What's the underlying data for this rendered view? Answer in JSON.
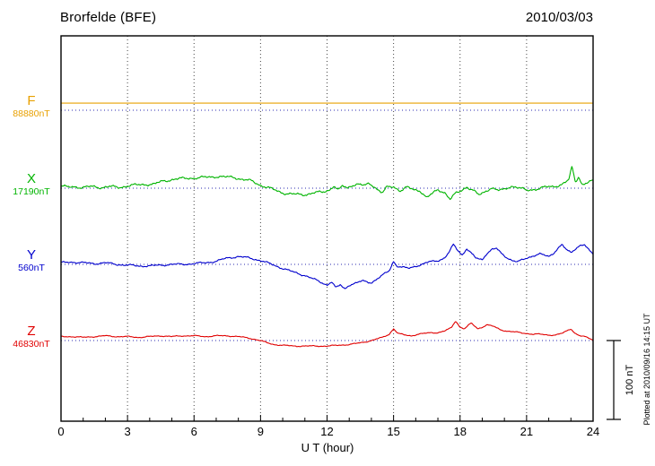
{
  "header": {
    "station": "Brorfelde (BFE)",
    "date": "2010/03/03"
  },
  "axis": {
    "x_label": "U T (hour)",
    "x_ticks": [
      0,
      3,
      6,
      9,
      12,
      15,
      18,
      21,
      24
    ],
    "x_range": [
      0,
      24
    ]
  },
  "scale_bar": {
    "label": "100 nT",
    "nT": 100
  },
  "plot_note": "Plotted at 2010/09/16 14:15 UT",
  "chart_data": {
    "type": "line",
    "title": "Brorfelde (BFE) magnetogram",
    "date": "2010/03/03",
    "xlabel": "U T (hour)",
    "x_range": [
      0,
      24
    ],
    "x_ticks": [
      0,
      3,
      6,
      9,
      12,
      15,
      18,
      21,
      24
    ],
    "grid": "dotted-vertical-at-3h",
    "scale_division_nT": 100,
    "units": "nT",
    "points_format": "[hour, delta_nT_from_baseline]",
    "series": [
      {
        "name": "F",
        "baseline_label": "88880nT",
        "baseline_nT": 88880,
        "color": "#e8a000",
        "points": [
          [
            0,
            9
          ],
          [
            24,
            9
          ]
        ]
      },
      {
        "name": "X",
        "baseline_label": "17190nT",
        "baseline_nT": 17190,
        "color": "#00b400",
        "points": [
          [
            0,
            3
          ],
          [
            0.3,
            1
          ],
          [
            0.6,
            2
          ],
          [
            1,
            1
          ],
          [
            1.4,
            2
          ],
          [
            1.8,
            1
          ],
          [
            2.2,
            2
          ],
          [
            2.6,
            1
          ],
          [
            3,
            3
          ],
          [
            3.4,
            4
          ],
          [
            3.8,
            5
          ],
          [
            4.2,
            5
          ],
          [
            4.6,
            9
          ],
          [
            5,
            11
          ],
          [
            5.4,
            12
          ],
          [
            5.8,
            13
          ],
          [
            6.2,
            13
          ],
          [
            6.6,
            14
          ],
          [
            7,
            15
          ],
          [
            7.4,
            14
          ],
          [
            7.8,
            14
          ],
          [
            8.2,
            11
          ],
          [
            8.6,
            9
          ],
          [
            9,
            4
          ],
          [
            9.4,
            0
          ],
          [
            9.8,
            -4
          ],
          [
            10.2,
            -7
          ],
          [
            10.6,
            -8
          ],
          [
            11,
            -8
          ],
          [
            11.4,
            -6
          ],
          [
            11.8,
            -5
          ],
          [
            12.1,
            -2
          ],
          [
            12.3,
            3
          ],
          [
            12.5,
            -3
          ],
          [
            12.7,
            3
          ],
          [
            12.9,
            0
          ],
          [
            13.1,
            4
          ],
          [
            13.4,
            5
          ],
          [
            13.7,
            3
          ],
          [
            13.9,
            6
          ],
          [
            14.1,
            3
          ],
          [
            14.3,
            -2
          ],
          [
            14.5,
            -6
          ],
          [
            14.7,
            1
          ],
          [
            15,
            2
          ],
          [
            15.3,
            -3
          ],
          [
            15.6,
            1
          ],
          [
            15.9,
            -2
          ],
          [
            16.2,
            -3
          ],
          [
            16.5,
            -12
          ],
          [
            16.8,
            -6
          ],
          [
            17,
            -2
          ],
          [
            17.3,
            -5
          ],
          [
            17.55,
            -14
          ],
          [
            17.8,
            -7
          ],
          [
            18,
            -4
          ],
          [
            18.3,
            2
          ],
          [
            18.6,
            -3
          ],
          [
            18.85,
            -9
          ],
          [
            19.1,
            -5
          ],
          [
            19.4,
            1
          ],
          [
            19.7,
            -3
          ],
          [
            20,
            -2
          ],
          [
            20.3,
            3
          ],
          [
            20.6,
            1
          ],
          [
            21,
            -3
          ],
          [
            21.4,
            -1
          ],
          [
            21.8,
            1
          ],
          [
            22.2,
            2
          ],
          [
            22.6,
            5
          ],
          [
            22.9,
            10
          ],
          [
            23.05,
            27
          ],
          [
            23.2,
            8
          ],
          [
            23.35,
            15
          ],
          [
            23.5,
            5
          ],
          [
            23.75,
            7
          ],
          [
            24,
            9
          ]
        ]
      },
      {
        "name": "Y",
        "baseline_label": "560nT",
        "baseline_nT": 560,
        "color": "#0000cd",
        "points": [
          [
            0,
            2
          ],
          [
            0.5,
            3
          ],
          [
            1,
            2
          ],
          [
            1.5,
            1
          ],
          [
            2,
            2
          ],
          [
            2.5,
            0
          ],
          [
            3,
            -1
          ],
          [
            3.5,
            -2
          ],
          [
            4,
            -2
          ],
          [
            4.5,
            -1
          ],
          [
            5,
            0
          ],
          [
            5.5,
            0
          ],
          [
            6,
            1
          ],
          [
            6.5,
            2
          ],
          [
            7,
            4
          ],
          [
            7.5,
            8
          ],
          [
            8,
            10
          ],
          [
            8.5,
            8
          ],
          [
            9,
            5
          ],
          [
            9.5,
            0
          ],
          [
            10,
            -5
          ],
          [
            10.5,
            -10
          ],
          [
            11,
            -14
          ],
          [
            11.5,
            -20
          ],
          [
            12,
            -26
          ],
          [
            12.2,
            -22
          ],
          [
            12.4,
            -30
          ],
          [
            12.6,
            -26
          ],
          [
            12.8,
            -31
          ],
          [
            13,
            -26
          ],
          [
            13.3,
            -24
          ],
          [
            13.6,
            -21
          ],
          [
            14,
            -23
          ],
          [
            14.3,
            -18
          ],
          [
            14.6,
            -12
          ],
          [
            14.8,
            -8
          ],
          [
            15,
            4
          ],
          [
            15.15,
            -2
          ],
          [
            15.4,
            -4
          ],
          [
            15.7,
            -5
          ],
          [
            16,
            -2
          ],
          [
            16.3,
            0
          ],
          [
            16.6,
            3
          ],
          [
            17,
            5
          ],
          [
            17.3,
            8
          ],
          [
            17.5,
            15
          ],
          [
            17.7,
            25
          ],
          [
            17.9,
            18
          ],
          [
            18.1,
            12
          ],
          [
            18.3,
            20
          ],
          [
            18.5,
            14
          ],
          [
            18.7,
            8
          ],
          [
            19,
            6
          ],
          [
            19.2,
            14
          ],
          [
            19.45,
            19
          ],
          [
            19.65,
            20
          ],
          [
            19.85,
            14
          ],
          [
            20.1,
            9
          ],
          [
            20.35,
            5
          ],
          [
            20.6,
            3
          ],
          [
            21,
            8
          ],
          [
            21.3,
            11
          ],
          [
            21.6,
            13
          ],
          [
            22,
            10
          ],
          [
            22.2,
            14
          ],
          [
            22.4,
            20
          ],
          [
            22.6,
            25
          ],
          [
            22.8,
            18
          ],
          [
            23,
            15
          ],
          [
            23.2,
            20
          ],
          [
            23.4,
            24
          ],
          [
            23.6,
            25
          ],
          [
            23.8,
            18
          ],
          [
            24,
            13
          ]
        ]
      },
      {
        "name": "Z",
        "baseline_label": "46830nT",
        "baseline_nT": 46830,
        "color": "#e00000",
        "points": [
          [
            0,
            5
          ],
          [
            0.5,
            5
          ],
          [
            1,
            4
          ],
          [
            1.5,
            5
          ],
          [
            2,
            6
          ],
          [
            2.5,
            5
          ],
          [
            3,
            5
          ],
          [
            3.5,
            4
          ],
          [
            4,
            5
          ],
          [
            4.5,
            6
          ],
          [
            5,
            5
          ],
          [
            5.5,
            6
          ],
          [
            6,
            6
          ],
          [
            6.5,
            5
          ],
          [
            7,
            6
          ],
          [
            7.5,
            6
          ],
          [
            8,
            5
          ],
          [
            8.5,
            3
          ],
          [
            9,
            0
          ],
          [
            9.3,
            -3
          ],
          [
            9.6,
            -5
          ],
          [
            10,
            -6
          ],
          [
            10.5,
            -7
          ],
          [
            11,
            -7
          ],
          [
            11.5,
            -7
          ],
          [
            12,
            -7
          ],
          [
            12.5,
            -6
          ],
          [
            13,
            -5
          ],
          [
            13.5,
            -3
          ],
          [
            14,
            0
          ],
          [
            14.5,
            4
          ],
          [
            14.8,
            8
          ],
          [
            15,
            15
          ],
          [
            15.2,
            9
          ],
          [
            15.5,
            7
          ],
          [
            15.8,
            6
          ],
          [
            16.1,
            8
          ],
          [
            16.4,
            9
          ],
          [
            16.7,
            10
          ],
          [
            17,
            10
          ],
          [
            17.3,
            12
          ],
          [
            17.6,
            16
          ],
          [
            17.8,
            25
          ],
          [
            18,
            17
          ],
          [
            18.2,
            15
          ],
          [
            18.5,
            22
          ],
          [
            18.8,
            15
          ],
          [
            19,
            17
          ],
          [
            19.2,
            20
          ],
          [
            19.5,
            18
          ],
          [
            19.8,
            14
          ],
          [
            20.1,
            12
          ],
          [
            20.4,
            11
          ],
          [
            20.7,
            10
          ],
          [
            21,
            9
          ],
          [
            21.3,
            8
          ],
          [
            21.6,
            8
          ],
          [
            22,
            7
          ],
          [
            22.3,
            7
          ],
          [
            22.6,
            9
          ],
          [
            23,
            15
          ],
          [
            23.2,
            9
          ],
          [
            23.4,
            6
          ],
          [
            23.6,
            5
          ],
          [
            23.8,
            3
          ],
          [
            24,
            1
          ]
        ]
      }
    ]
  }
}
